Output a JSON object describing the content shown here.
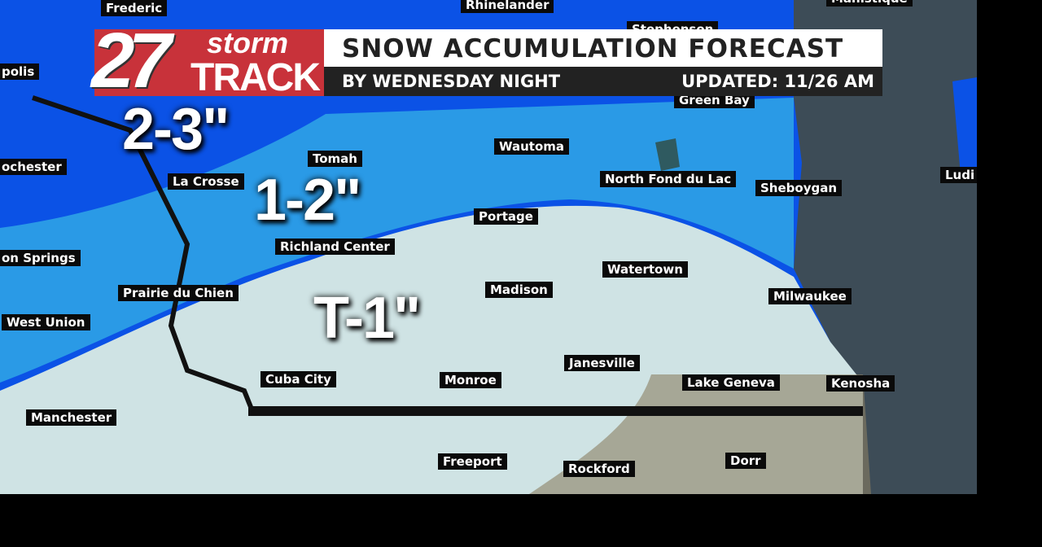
{
  "colors": {
    "heavy": "#0b52e6",
    "moderate": "#2a9ae6",
    "light": "#cfe3e4",
    "lake": "#3d4c57",
    "brand_red": "#c8323a"
  },
  "logo": {
    "number": "27",
    "line1": "storm",
    "line2": "TRACK"
  },
  "header": {
    "title": "SNOW ACCUMULATION FORECAST",
    "subtitle": "BY WEDNESDAY NIGHT",
    "updated": "UPDATED: 11/26 AM"
  },
  "amounts": [
    {
      "label": "2-3\""
    },
    {
      "label": "1-2\""
    },
    {
      "label": "T-1\""
    }
  ],
  "cities": [
    "Frederic",
    "Rhinelander",
    "Manistique",
    "Stephenson",
    "polis",
    "Green Bay",
    "ochester",
    "Tomah",
    "Wautoma",
    "La Crosse",
    "North Fond du Lac",
    "Sheboygan",
    "Ludi",
    "Portage",
    "on Springs",
    "Richland Center",
    "Watertown",
    "Prairie du Chien",
    "Madison",
    "Milwaukee",
    "West Union",
    "Janesville",
    "Cuba City",
    "Monroe",
    "Lake Geneva",
    "Kenosha",
    "Manchester",
    "Freeport",
    "Rockford",
    "Dorr"
  ]
}
